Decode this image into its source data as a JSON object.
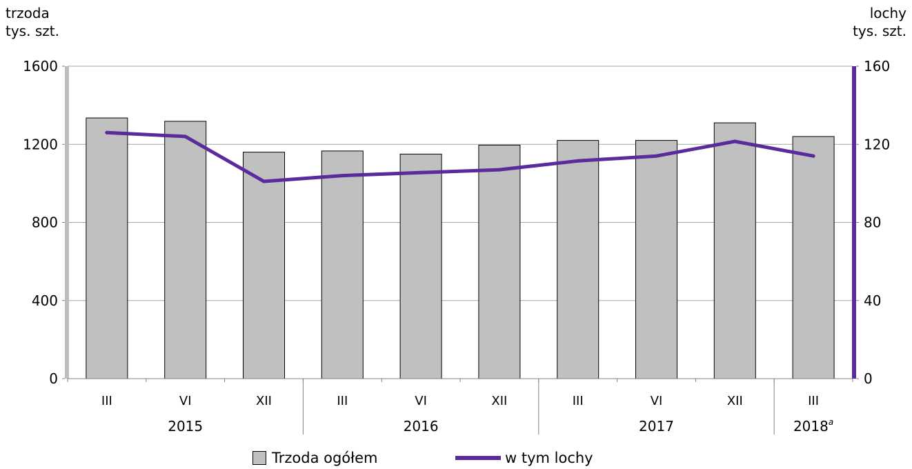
{
  "chart_data": {
    "type": "bar",
    "categories": [
      "III",
      "VI",
      "XII",
      "III",
      "VI",
      "XII",
      "III",
      "VI",
      "XII",
      "III"
    ],
    "groups": [
      {
        "label": "2015",
        "sup": "",
        "count": 3
      },
      {
        "label": "2016",
        "sup": "",
        "count": 3
      },
      {
        "label": "2017",
        "sup": "",
        "count": 3
      },
      {
        "label": "2018",
        "sup": "a",
        "count": 1
      }
    ],
    "series": [
      {
        "name": "Trzoda ogółem",
        "type": "bar",
        "axis": "left",
        "values": [
          1335,
          1318,
          1160,
          1166,
          1150,
          1196,
          1220,
          1220,
          1310,
          1240
        ]
      },
      {
        "name": "w tym lochy",
        "type": "line",
        "axis": "right",
        "values": [
          126,
          124,
          101,
          104,
          105.5,
          107,
          111.5,
          114,
          121.5,
          114
        ]
      }
    ],
    "ylabel": "trzoda",
    "yunit": "tys. szt.",
    "y2label": "lochy",
    "y2unit": "tys. szt.",
    "ylim": [
      0,
      1600
    ],
    "y2lim": [
      0,
      160
    ],
    "yticks": [
      0,
      400,
      800,
      1200,
      1600
    ],
    "y2ticks": [
      0,
      40,
      80,
      120,
      160
    ],
    "grid": true,
    "legend_position": "bottom-center",
    "colors": {
      "bar": "#c0c0c0",
      "line": "#5b2a9c",
      "left_axis": "#bdbdbd",
      "grid": "#a6a6a6"
    }
  }
}
